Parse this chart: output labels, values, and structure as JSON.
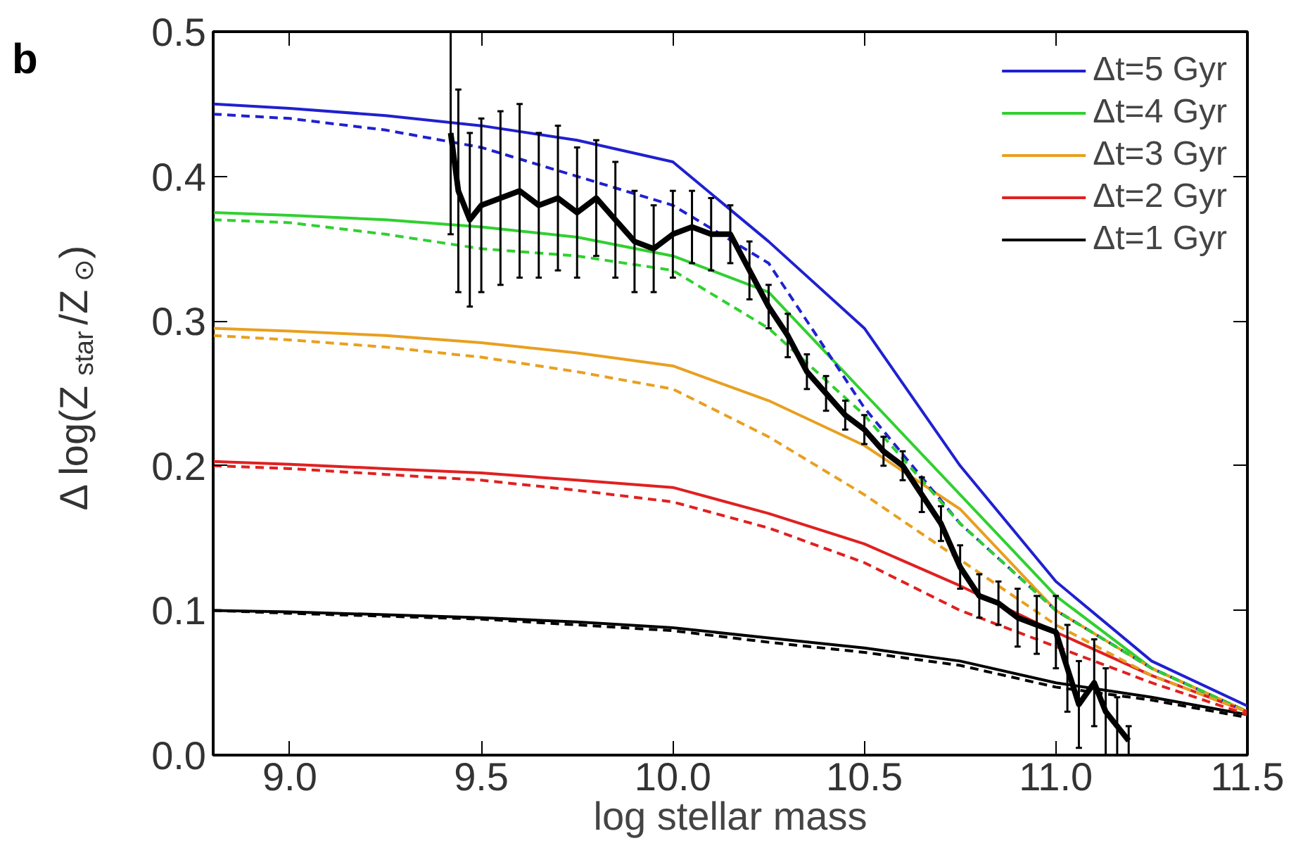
{
  "chart_data": {
    "type": "line",
    "xlabel": "log stellar mass",
    "ylabel": "Δ log(Z$_{star}$/Z$_{⊙}$)",
    "annotations": [
      "b"
    ],
    "xlim": [
      8.8,
      11.5
    ],
    "xticks": [
      {
        "value": 9.0,
        "label": "9.0"
      },
      9.5,
      {
        "value": 10.0,
        "label": "10.0"
      },
      10.5,
      {
        "value": 11.0,
        "label": "11.0"
      },
      11.5
    ],
    "ylim": [
      0,
      0.5
    ],
    "yticks": [
      {
        "value": 0,
        "label": "0.0"
      },
      0.1,
      0.2,
      0.3,
      0.4,
      0.5
    ],
    "grid": false,
    "legend": "top right",
    "marker": "none",
    "x": [
      8.8,
      9.0,
      9.25,
      9.5,
      9.75,
      10.0,
      10.25,
      10.5,
      10.75,
      11.0,
      11.25,
      11.5
    ],
    "series": [
      {
        "name": "Δt=5 Gyr",
        "color": "#2020d0",
        "line_style": "solid",
        "values": [
          0.45,
          0.447,
          0.442,
          0.435,
          0.425,
          0.41,
          0.355,
          0.295,
          0.2,
          0.12,
          0.065,
          0.034
        ]
      },
      {
        "name": "Δt=4 Gyr",
        "color": "#30d030",
        "line_style": "solid",
        "values": [
          0.375,
          0.373,
          0.37,
          0.365,
          0.358,
          0.345,
          0.32,
          0.25,
          0.18,
          0.11,
          0.06,
          0.03
        ]
      },
      {
        "name": "Δt=3 Gyr",
        "color": "#e8a020",
        "line_style": "solid",
        "values": [
          0.295,
          0.293,
          0.29,
          0.285,
          0.278,
          0.269,
          0.245,
          0.214,
          0.17,
          0.1,
          0.06,
          0.03
        ]
      },
      {
        "name": "Δt=2 Gyr",
        "color": "#e02020",
        "line_style": "solid",
        "values": [
          0.203,
          0.201,
          0.198,
          0.195,
          0.19,
          0.185,
          0.167,
          0.146,
          0.117,
          0.085,
          0.055,
          0.03
        ]
      },
      {
        "name": "Δt=1 Gyr",
        "color": "#000000",
        "line_style": "solid",
        "values": [
          0.1,
          0.099,
          0.097,
          0.095,
          0.092,
          0.088,
          0.081,
          0.074,
          0.065,
          0.05,
          0.04,
          0.028
        ]
      },
      {
        "color": "#2020d0",
        "line_style": "dashed",
        "values": [
          0.443,
          0.44,
          0.432,
          0.42,
          0.4,
          0.38,
          0.34,
          0.24,
          0.16,
          0.1,
          0.06,
          0.03
        ]
      },
      {
        "color": "#30d030",
        "line_style": "dashed",
        "values": [
          0.37,
          0.368,
          0.36,
          0.35,
          0.345,
          0.335,
          0.295,
          0.235,
          0.16,
          0.1,
          0.06,
          0.03
        ]
      },
      {
        "color": "#e8a020",
        "line_style": "dashed",
        "values": [
          0.29,
          0.287,
          0.282,
          0.275,
          0.265,
          0.253,
          0.22,
          0.18,
          0.135,
          0.09,
          0.055,
          0.03
        ]
      },
      {
        "color": "#e02020",
        "line_style": "dashed",
        "values": [
          0.2,
          0.198,
          0.194,
          0.19,
          0.183,
          0.175,
          0.157,
          0.133,
          0.1,
          0.075,
          0.05,
          0.028
        ]
      },
      {
        "color": "#000000",
        "line_style": "dashed",
        "values": [
          0.1,
          0.098,
          0.096,
          0.094,
          0.09,
          0.086,
          0.078,
          0.071,
          0.062,
          0.047,
          0.038,
          0.026
        ]
      },
      {
        "color": "#000000",
        "line_style": "solid",
        "type": "line",
        "x": [
          9.42,
          9.44,
          9.47,
          9.5,
          9.55,
          9.6,
          9.65,
          9.7,
          9.75,
          9.8,
          9.85,
          9.9,
          9.95,
          10.0,
          10.05,
          10.1,
          10.15,
          10.2,
          10.25,
          10.3,
          10.35,
          10.4,
          10.45,
          10.5,
          10.55,
          10.6,
          10.65,
          10.7,
          10.75,
          10.8,
          10.85,
          10.9,
          10.95,
          11.0,
          11.03,
          11.06,
          11.1,
          11.13,
          11.16,
          11.19
        ],
        "values": [
          0.43,
          0.39,
          0.37,
          0.38,
          0.385,
          0.39,
          0.38,
          0.385,
          0.375,
          0.385,
          0.37,
          0.355,
          0.35,
          0.36,
          0.365,
          0.36,
          0.36,
          0.335,
          0.31,
          0.29,
          0.265,
          0.25,
          0.235,
          0.225,
          0.21,
          0.2,
          0.18,
          0.16,
          0.13,
          0.11,
          0.105,
          0.095,
          0.09,
          0.085,
          0.06,
          0.035,
          0.05,
          0.03,
          0.02,
          0.01
        ],
        "errors": [
          0.07,
          0.07,
          0.06,
          0.06,
          0.06,
          0.06,
          0.05,
          0.05,
          0.045,
          0.04,
          0.04,
          0.035,
          0.03,
          0.03,
          0.025,
          0.025,
          0.02,
          0.02,
          0.015,
          0.015,
          0.012,
          0.012,
          0.01,
          0.01,
          0.01,
          0.01,
          0.012,
          0.012,
          0.015,
          0.015,
          0.015,
          0.02,
          0.02,
          0.025,
          0.03,
          0.03,
          0.03,
          0.03,
          0.02,
          0.01
        ]
      }
    ]
  }
}
